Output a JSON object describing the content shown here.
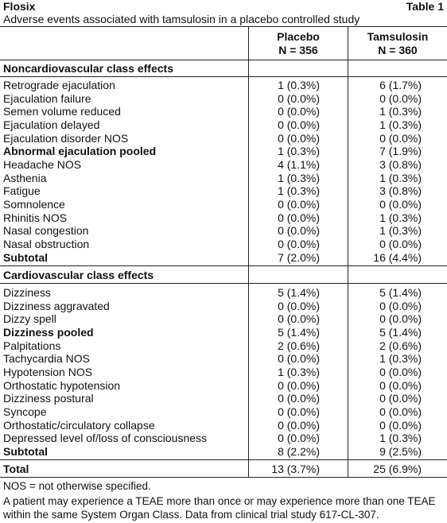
{
  "header": {
    "title": "Flosix",
    "table_label": "Table 1",
    "caption": "Adverse events associated with tamsulosin in a placebo controlled study"
  },
  "columns": [
    {
      "name": "Placebo",
      "n": "N = 356"
    },
    {
      "name": "Tamsulosin",
      "n": "N = 360"
    }
  ],
  "sections": [
    {
      "title": "Noncardiovascular class effects",
      "rows": [
        {
          "label": "Retrograde ejaculation",
          "placebo": "1 (0.3%)",
          "tamsulosin": "6 (1.7%)"
        },
        {
          "label": "Ejaculation failure",
          "placebo": "0 (0.0%)",
          "tamsulosin": "0 (0.0%)"
        },
        {
          "label": "Semen volume reduced",
          "placebo": "0 (0.0%)",
          "tamsulosin": "1 (0.3%)"
        },
        {
          "label": "Ejaculation delayed",
          "placebo": "0 (0.0%)",
          "tamsulosin": "1 (0.3%)"
        },
        {
          "label": "Ejaculation disorder NOS",
          "placebo": "0 (0.0%)",
          "tamsulosin": "0 (0.0%)"
        },
        {
          "label": "Abnormal ejaculation pooled",
          "placebo": "1 (0.3%)",
          "tamsulosin": "7 (1.9%)",
          "bold": true
        },
        {
          "label": "Headache NOS",
          "placebo": "4 (1.1%)",
          "tamsulosin": "3 (0.8%)"
        },
        {
          "label": "Asthenia",
          "placebo": "1 (0.3%)",
          "tamsulosin": "1 (0.3%)"
        },
        {
          "label": "Fatigue",
          "placebo": "1 (0.3%)",
          "tamsulosin": "3 (0.8%)"
        },
        {
          "label": "Somnolence",
          "placebo": "0 (0.0%)",
          "tamsulosin": "0 (0.0%)"
        },
        {
          "label": "Rhinitis NOS",
          "placebo": "0 (0.0%)",
          "tamsulosin": "1 (0.3%)"
        },
        {
          "label": "Nasal congestion",
          "placebo": "0 (0.0%)",
          "tamsulosin": "1 (0.3%)"
        },
        {
          "label": "Nasal obstruction",
          "placebo": "0 (0.0%)",
          "tamsulosin": "0 (0.0%)"
        },
        {
          "label": "Subtotal",
          "placebo": "7 (2.0%)",
          "tamsulosin": "16 (4.4%)",
          "bold": true
        }
      ]
    },
    {
      "title": "Cardiovascular class effects",
      "rows": [
        {
          "label": "Dizziness",
          "placebo": "5 (1.4%)",
          "tamsulosin": "5 (1.4%)"
        },
        {
          "label": "Dizziness aggravated",
          "placebo": "0 (0.0%)",
          "tamsulosin": "0 (0.0%)"
        },
        {
          "label": "Dizzy spell",
          "placebo": "0 (0.0%)",
          "tamsulosin": "0 (0.0%)"
        },
        {
          "label": "Dizziness pooled",
          "placebo": "5 (1.4%)",
          "tamsulosin": "5 (1.4%)",
          "bold": true
        },
        {
          "label": "Palpitations",
          "placebo": "2 (0.6%)",
          "tamsulosin": "2 (0.6%)"
        },
        {
          "label": "Tachycardia NOS",
          "placebo": "0 (0.0%)",
          "tamsulosin": "1 (0.3%)"
        },
        {
          "label": "Hypotension NOS",
          "placebo": "1 (0.3%)",
          "tamsulosin": "0 (0.0%)"
        },
        {
          "label": "Orthostatic hypotension",
          "placebo": "0 (0.0%)",
          "tamsulosin": "0 (0.0%)"
        },
        {
          "label": "Dizziness postural",
          "placebo": "0 (0.0%)",
          "tamsulosin": "0 (0.0%)"
        },
        {
          "label": "Syncope",
          "placebo": "0 (0.0%)",
          "tamsulosin": "0 (0.0%)"
        },
        {
          "label": "Orthostatic/circulatory collapse",
          "placebo": "0 (0.0%)",
          "tamsulosin": "0 (0.0%)"
        },
        {
          "label": "Depressed level of/loss of consciousness",
          "placebo": "0 (0.0%)",
          "tamsulosin": "1 (0.3%)"
        },
        {
          "label": "Subtotal",
          "placebo": "8 (2.2%)",
          "tamsulosin": "9 (2.5%)",
          "bold": true
        }
      ]
    }
  ],
  "total": {
    "label": "Total",
    "placebo": "13 (3.7%)",
    "tamsulosin": "25 (6.9%)"
  },
  "footnotes": [
    "NOS = not otherwise specified.",
    "A patient may experience a TEAE more than once or may experience more than one TEAE within the same System Organ Class. Data from clinical trial study 617-CL-307."
  ]
}
